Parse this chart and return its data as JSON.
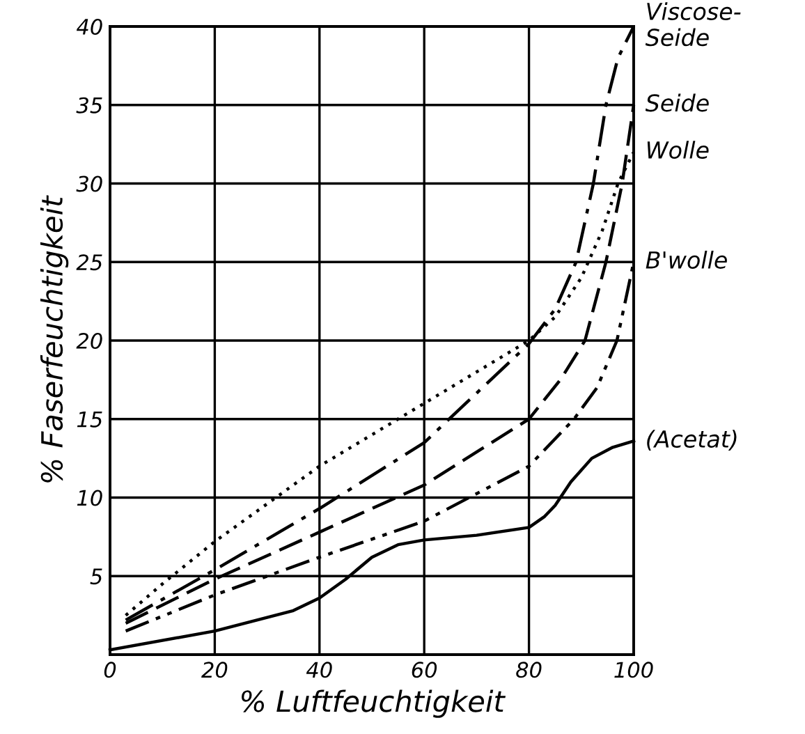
{
  "chart_data": {
    "type": "line",
    "xlabel": "% Luftfeuchtigkeit",
    "ylabel": "% Faserfeuchtigkeit",
    "xlim": [
      0,
      100
    ],
    "ylim": [
      0,
      40
    ],
    "xticks": [
      0,
      20,
      40,
      60,
      80,
      100
    ],
    "yticks": [
      {
        "value": 0,
        "label": null
      },
      5,
      10,
      15,
      20,
      25,
      30,
      35,
      40
    ],
    "grid": true,
    "series": [
      {
        "name": "Viscose-\nSeide",
        "color": "#000000",
        "line_style": "dashdot",
        "x": [
          3,
          20,
          40,
          60,
          80,
          85,
          89,
          92.3,
          94.7,
          97,
          100
        ],
        "values": [
          2.2,
          5.4,
          9.3,
          13.5,
          19.8,
          22,
          25,
          30,
          35,
          38,
          40
        ]
      },
      {
        "name": "Seide",
        "color": "#000000",
        "line_style": "dashed",
        "x": [
          3,
          20,
          40,
          60,
          80,
          86,
          90.7,
          94.7,
          97.8,
          100
        ],
        "values": [
          2.0,
          4.8,
          7.8,
          10.8,
          15,
          17.5,
          20,
          25,
          30,
          35
        ]
      },
      {
        "name": "Wolle",
        "color": "#000000",
        "line_style": "dotted",
        "x": [
          3,
          10,
          20,
          40,
          60,
          80,
          85,
          90,
          94,
          97,
          100
        ],
        "values": [
          2.5,
          4.5,
          7.2,
          12,
          16,
          20,
          21.5,
          24,
          27,
          30,
          32
        ]
      },
      {
        "name": "B'wolle",
        "color": "#000000",
        "line_style": "dashdotdot",
        "x": [
          3,
          20,
          40,
          60,
          80,
          88.6,
          93,
          96.8,
          100
        ],
        "values": [
          1.5,
          3.8,
          6.2,
          8.5,
          12,
          15,
          17,
          20,
          25
        ]
      },
      {
        "name": "(Acetat)",
        "color": "#000000",
        "line_style": "solid",
        "x": [
          0,
          20,
          35,
          40,
          45,
          50,
          55,
          60,
          70,
          80,
          83,
          85,
          88,
          92,
          96,
          100
        ],
        "values": [
          0.3,
          1.5,
          2.8,
          3.6,
          4.8,
          6.2,
          7.0,
          7.3,
          7.6,
          8.1,
          8.8,
          9.5,
          11,
          12.5,
          13.2,
          13.6
        ]
      }
    ]
  }
}
